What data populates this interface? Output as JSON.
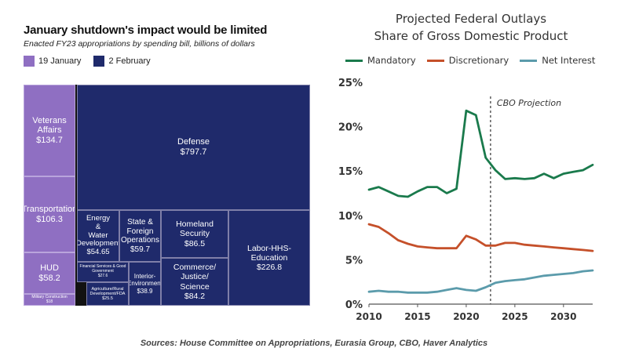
{
  "treemap_chart": {
    "title": "January shutdown's impact would be limited",
    "subtitle": "Enacted FY23 appropriations by spending bill, billions of dollars",
    "legend": [
      {
        "label": "19 January",
        "color": "#8f6fc2"
      },
      {
        "label": "2 February",
        "color": "#1f2a6b"
      }
    ],
    "cells": [
      {
        "name": "Veterans Affairs",
        "value": "$134.7"
      },
      {
        "name": "Transportation",
        "value": "$106.3"
      },
      {
        "name": "HUD",
        "value": "$58.2"
      },
      {
        "name": "Military Construction",
        "value": "$18"
      },
      {
        "name": "Defense",
        "value": "$797.7"
      },
      {
        "name": "Energy & Water Development",
        "value": "$54.65"
      },
      {
        "name": "Financial Services & Good Government",
        "value": "$27.6"
      },
      {
        "name": "Agriculture/Rural Development/FDA",
        "value": "$25.5"
      },
      {
        "name": "State & Foreign Operations",
        "value": "$59.7"
      },
      {
        "name": "Interior-Environment",
        "value": "$38.9"
      },
      {
        "name": "Homeland Security",
        "value": "$86.5"
      },
      {
        "name": "Commerce/ Justice/ Science",
        "value": "$84.2"
      },
      {
        "name": "Labor-HHS-Education",
        "value": "$226.8"
      }
    ]
  },
  "chart_data": [
    {
      "type": "treemap",
      "title": "January shutdown's impact would be limited",
      "subtitle": "Enacted FY23 appropriations by spending bill, billions of dollars",
      "unit": "billions of dollars",
      "groups": [
        "19 January",
        "2 February"
      ],
      "items": [
        {
          "name": "Veterans Affairs",
          "value": 134.7,
          "group": "19 January"
        },
        {
          "name": "Transportation",
          "value": 106.3,
          "group": "19 January"
        },
        {
          "name": "HUD",
          "value": 58.2,
          "group": "19 January"
        },
        {
          "name": "Military Construction",
          "value": 18,
          "group": "19 January"
        },
        {
          "name": "Defense",
          "value": 797.7,
          "group": "2 February"
        },
        {
          "name": "Energy & Water Development",
          "value": 54.65,
          "group": "2 February"
        },
        {
          "name": "Financial Services & Good Government",
          "value": 27.6,
          "group": "2 February"
        },
        {
          "name": "Agriculture/Rural Development/FDA",
          "value": 25.5,
          "group": "2 February"
        },
        {
          "name": "State & Foreign Operations",
          "value": 59.7,
          "group": "2 February"
        },
        {
          "name": "Interior-Environment",
          "value": 38.9,
          "group": "2 February"
        },
        {
          "name": "Homeland Security",
          "value": 86.5,
          "group": "2 February"
        },
        {
          "name": "Commerce/ Justice/ Science",
          "value": 84.2,
          "group": "2 February"
        },
        {
          "name": "Labor-HHS-Education",
          "value": 226.8,
          "group": "2 February"
        }
      ]
    },
    {
      "type": "line",
      "title": "Projected Federal Outlays Share of Gross Domestic Product",
      "title_lines": [
        "Projected Federal Outlays",
        "Share of Gross Domestic Product"
      ],
      "x": [
        2010,
        2011,
        2012,
        2013,
        2014,
        2015,
        2016,
        2017,
        2018,
        2019,
        2020,
        2021,
        2022,
        2023,
        2024,
        2025,
        2026,
        2027,
        2028,
        2029,
        2030,
        2031,
        2032,
        2033
      ],
      "series": [
        {
          "name": "Mandatory",
          "color": "#1a7a4c",
          "values": [
            12.9,
            13.2,
            12.7,
            12.2,
            12.1,
            12.7,
            13.2,
            13.2,
            12.5,
            13.0,
            21.8,
            21.3,
            16.5,
            15.1,
            14.1,
            14.2,
            14.1,
            14.2,
            14.7,
            14.2,
            14.7,
            14.9,
            15.1,
            15.7
          ]
        },
        {
          "name": "Discretionary",
          "color": "#c5502a",
          "values": [
            9.0,
            8.7,
            8.0,
            7.2,
            6.8,
            6.5,
            6.4,
            6.3,
            6.3,
            6.3,
            7.7,
            7.3,
            6.6,
            6.6,
            6.9,
            6.9,
            6.7,
            6.6,
            6.5,
            6.4,
            6.3,
            6.2,
            6.1,
            6.0
          ]
        },
        {
          "name": "Net Interest",
          "color": "#5b9bab",
          "values": [
            1.4,
            1.5,
            1.4,
            1.4,
            1.3,
            1.3,
            1.3,
            1.4,
            1.6,
            1.8,
            1.6,
            1.5,
            1.9,
            2.4,
            2.6,
            2.7,
            2.8,
            3.0,
            3.2,
            3.3,
            3.4,
            3.5,
            3.7,
            3.8
          ]
        }
      ],
      "xlim": [
        2010,
        2033
      ],
      "ylim": [
        0,
        25
      ],
      "xticks": [
        2010,
        2015,
        2020,
        2025,
        2030
      ],
      "xtick_labels": [
        "2010",
        "2015",
        "2020",
        "2025",
        "2030"
      ],
      "yticks": [
        0,
        5,
        10,
        15,
        20,
        25
      ],
      "ytick_labels": [
        "0%",
        "5%",
        "10%",
        "15%",
        "20%",
        "25%"
      ],
      "legend": "top",
      "grid": false,
      "annotation": {
        "x": 2022.5,
        "label": "CBO Projection",
        "style": "dashed vertical line"
      }
    }
  ],
  "source": "Sources: House Committee on Appropriations, Eurasia Group, CBO, Haver Analytics"
}
